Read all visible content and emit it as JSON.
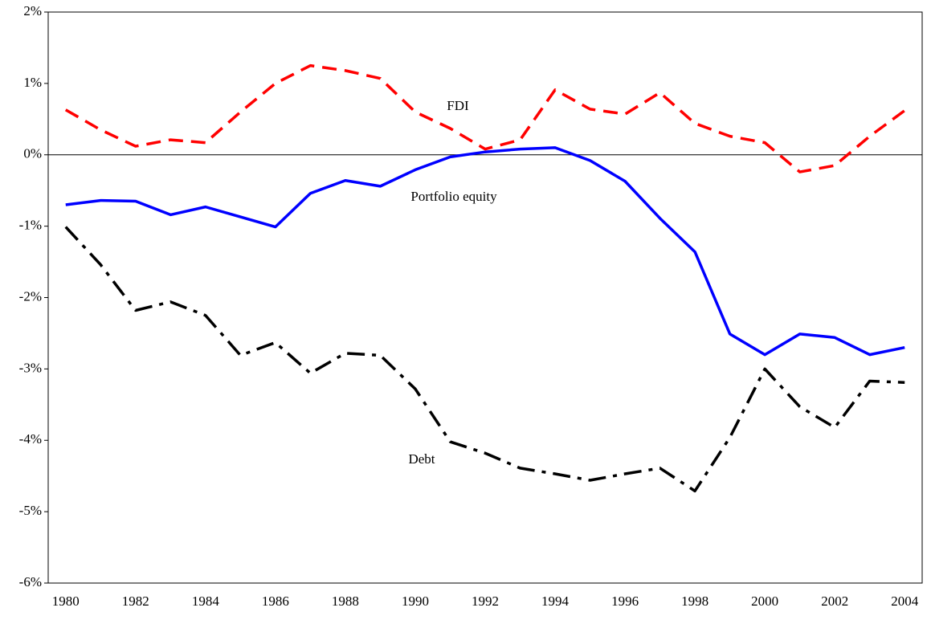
{
  "chart_data": {
    "type": "line",
    "x": [
      1980,
      1981,
      1982,
      1983,
      1984,
      1985,
      1986,
      1987,
      1988,
      1989,
      1990,
      1991,
      1992,
      1993,
      1994,
      1995,
      1996,
      1997,
      1998,
      1999,
      2000,
      2001,
      2002,
      2003,
      2004
    ],
    "xlim": [
      1979.5,
      2004.5
    ],
    "xticks": [
      1980,
      1982,
      1984,
      1986,
      1988,
      1990,
      1992,
      1994,
      1996,
      1998,
      2000,
      2002,
      2004
    ],
    "ylim": [
      -6,
      2
    ],
    "yticks": [
      {
        "value": -6,
        "label": "-6%"
      },
      {
        "value": -5,
        "label": "-5%"
      },
      {
        "value": -4,
        "label": "-4%"
      },
      {
        "value": -3,
        "label": "-3%"
      },
      {
        "value": -2,
        "label": "-2%"
      },
      {
        "value": -1,
        "label": "-1%"
      },
      {
        "value": 0,
        "label": "0%"
      },
      {
        "value": 1,
        "label": "1%"
      },
      {
        "value": 2,
        "label": "2%"
      }
    ],
    "series": [
      {
        "name": "FDI",
        "color": "#ff0000",
        "dash": "dashed",
        "values": [
          0.63,
          0.35,
          0.12,
          0.21,
          0.17,
          0.6,
          1.0,
          1.25,
          1.18,
          1.07,
          0.6,
          0.37,
          0.08,
          0.21,
          0.91,
          0.64,
          0.57,
          0.87,
          0.44,
          0.26,
          0.17,
          -0.24,
          -0.15,
          0.26,
          0.62
        ]
      },
      {
        "name": "Portfolio equity",
        "color": "#0000ff",
        "dash": "solid",
        "values": [
          -0.7,
          -0.64,
          -0.65,
          -0.84,
          -0.73,
          -0.87,
          -1.01,
          -0.54,
          -0.36,
          -0.44,
          -0.21,
          -0.03,
          0.04,
          0.08,
          0.1,
          -0.08,
          -0.37,
          -0.89,
          -1.36,
          -2.51,
          -2.8,
          -2.51,
          -2.56,
          -2.8,
          -2.7
        ]
      },
      {
        "name": "Debt",
        "color": "#000000",
        "dash": "dashdot",
        "values": [
          -1.01,
          -1.54,
          -2.18,
          -2.06,
          -2.25,
          -2.81,
          -2.63,
          -3.06,
          -2.78,
          -2.81,
          -3.28,
          -4.02,
          -4.18,
          -4.39,
          -4.47,
          -4.56,
          -4.47,
          -4.39,
          -4.71,
          -3.96,
          -3.0,
          -3.53,
          -3.82,
          -3.17,
          -3.19
        ]
      }
    ]
  }
}
